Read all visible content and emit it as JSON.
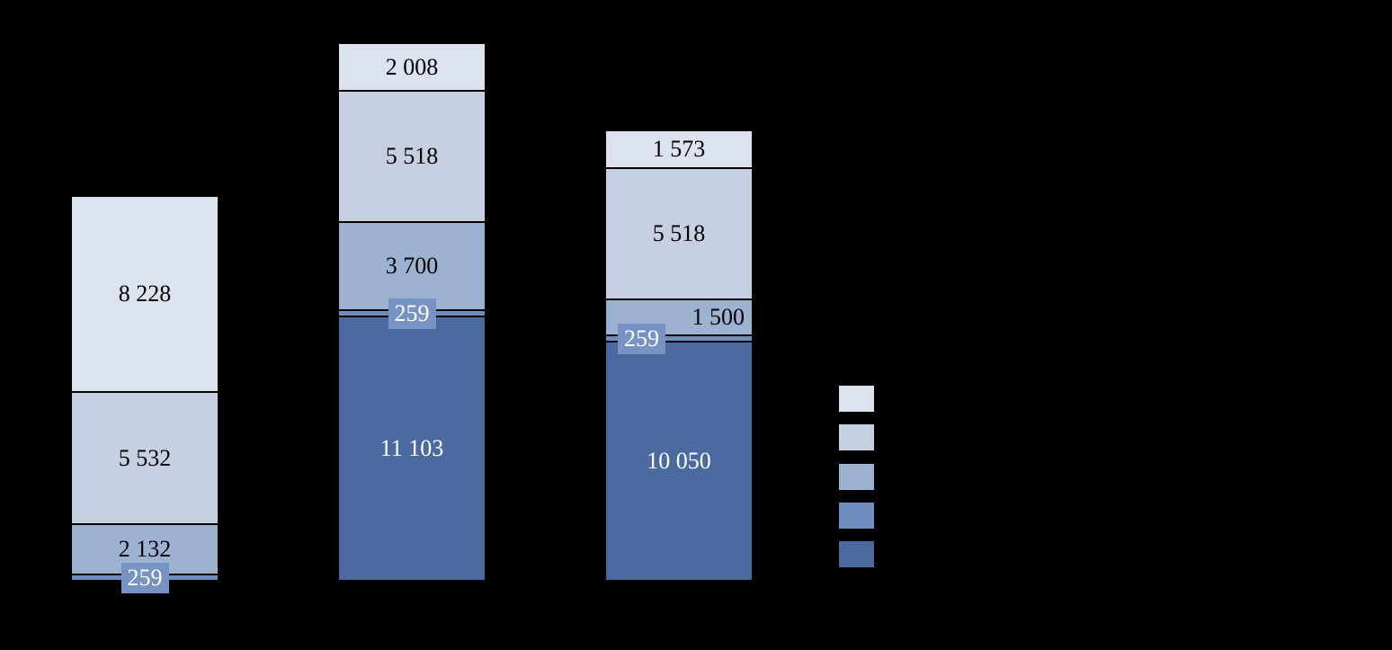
{
  "page": {
    "background_color": "#000000"
  },
  "chart_data": {
    "type": "bar",
    "subtype": "stacked-vertical",
    "title": "",
    "xlabel": "",
    "ylabel": "",
    "categories": [
      "",
      "",
      ""
    ],
    "stack_order": "top-to-bottom",
    "number_format": "space-thousands-separator",
    "series": [
      {
        "name": "tier-1-lightest",
        "color": "#dce3ef",
        "label_color": "#000000",
        "values": [
          8228,
          2008,
          1573
        ],
        "labels": [
          "8 228",
          "2 008",
          "1 573"
        ],
        "label_align": [
          "center",
          "center",
          "center"
        ]
      },
      {
        "name": "tier-2-light",
        "color": "#c6d0e2",
        "label_color": "#000000",
        "values": [
          5532,
          5518,
          5518
        ],
        "labels": [
          "5 532",
          "5 518",
          "5 518"
        ],
        "label_align": [
          "center",
          "center",
          "center"
        ]
      },
      {
        "name": "tier-3-medium",
        "color": "#9db1d1",
        "label_color": "#000000",
        "values": [
          2132,
          3700,
          1500
        ],
        "labels": [
          "2 132",
          "3 700",
          "1 500"
        ],
        "label_align": [
          "center",
          "center",
          "right"
        ]
      },
      {
        "name": "tier-4-medium-dark",
        "color": "#6f8dbf",
        "label_color": "#ffffff",
        "label_style": "boxed",
        "label_box_color": "#7693c4",
        "values": [
          259,
          259,
          259
        ],
        "labels": [
          "259",
          "259",
          "259"
        ],
        "label_align": [
          "center",
          "center",
          "left"
        ]
      },
      {
        "name": "tier-5-dark",
        "color": "#4b6ba0",
        "label_color": "#ffffff",
        "values": [
          0,
          11103,
          10050
        ],
        "labels": [
          "",
          "11 103",
          "10 050"
        ],
        "label_align": [
          "center",
          "center",
          "center"
        ]
      }
    ],
    "totals": [
      16151,
      22588,
      18900
    ],
    "legend": {
      "position": "right",
      "labels_visible": false,
      "swatch_colors": [
        "#dce3ef",
        "#c6d0e2",
        "#9db1d1",
        "#6f8dbf",
        "#4b6ba0"
      ]
    },
    "axes": {
      "gridlines": false,
      "tick_labels_visible": false,
      "y_min": 0
    }
  }
}
